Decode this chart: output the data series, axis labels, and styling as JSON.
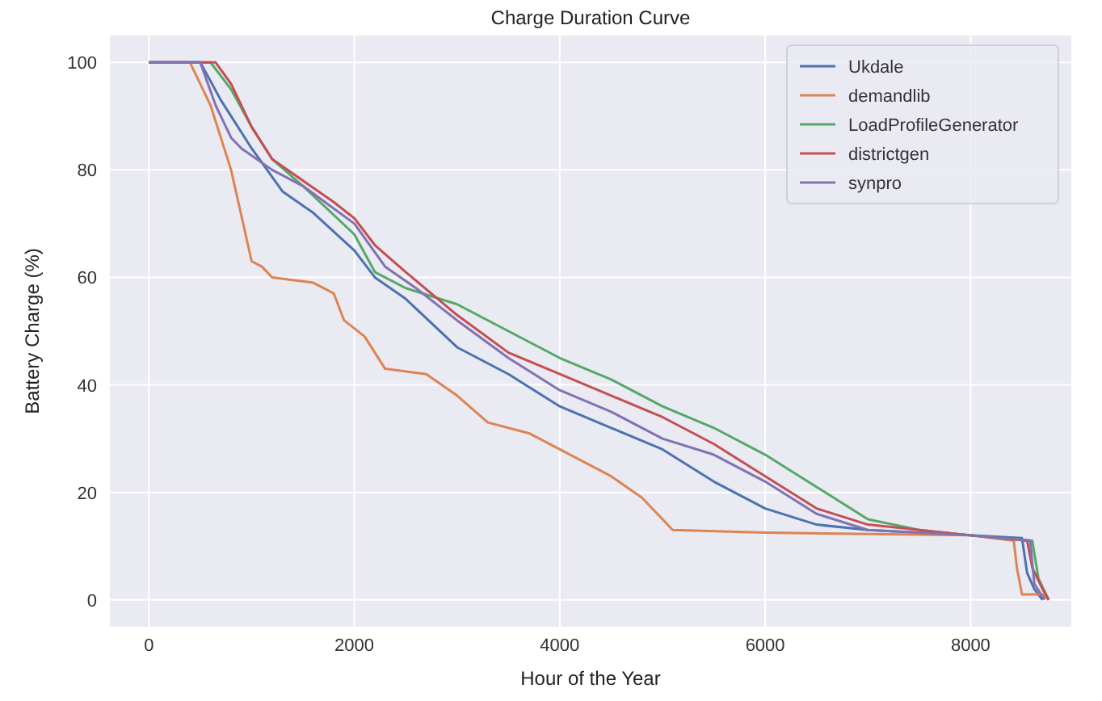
{
  "chart_data": {
    "type": "line",
    "title": "Charge Duration Curve",
    "xlabel": "Hour of the Year",
    "ylabel": "Battery Charge (%)",
    "xlim": [
      -380,
      8980
    ],
    "ylim": [
      -5,
      105
    ],
    "xticks": [
      0,
      2000,
      4000,
      6000,
      8000
    ],
    "yticks": [
      0,
      20,
      40,
      60,
      80,
      100
    ],
    "grid": true,
    "legend": "top right",
    "line_style": "solid",
    "marker": "none",
    "series": [
      {
        "name": "Ukdale",
        "color": "#4c72b0",
        "x": [
          0,
          500,
          700,
          1000,
          1300,
          1600,
          2000,
          2200,
          2500,
          3000,
          3500,
          4000,
          4500,
          5000,
          5500,
          6000,
          6500,
          7000,
          8000,
          8500,
          8550,
          8620,
          8700
        ],
        "values": [
          100,
          100,
          93,
          84,
          76,
          72,
          65,
          60,
          56,
          47,
          42,
          36,
          32,
          28,
          22,
          17,
          14,
          13,
          12,
          11.5,
          5,
          2,
          0
        ]
      },
      {
        "name": "demandlib",
        "color": "#dd8452",
        "x": [
          0,
          400,
          600,
          800,
          1000,
          1100,
          1200,
          1600,
          1800,
          1900,
          2100,
          2300,
          2700,
          3000,
          3300,
          3700,
          4000,
          4500,
          4800,
          5100,
          6000,
          8000,
          8420,
          8450,
          8500,
          8700,
          8760
        ],
        "values": [
          100,
          100,
          92,
          80,
          63,
          62,
          60,
          59,
          57,
          52,
          49,
          43,
          42,
          38,
          33,
          31,
          28,
          23,
          19,
          13,
          12.5,
          12,
          11,
          6,
          1,
          1,
          0
        ]
      },
      {
        "name": "LoadProfileGenerator",
        "color": "#55a868",
        "x": [
          0,
          600,
          800,
          1000,
          1200,
          1500,
          2000,
          2200,
          2500,
          3000,
          3500,
          4000,
          4500,
          5000,
          5500,
          6000,
          6500,
          7000,
          7500,
          8000,
          8600,
          8660,
          8760
        ],
        "values": [
          100,
          100,
          95,
          88,
          82,
          77,
          68,
          61,
          58,
          55,
          50,
          45,
          41,
          36,
          32,
          27,
          21,
          15,
          13,
          12,
          11,
          4,
          0
        ]
      },
      {
        "name": "districtgen",
        "color": "#c44e52",
        "x": [
          0,
          650,
          800,
          1000,
          1200,
          1500,
          1800,
          2000,
          2200,
          2500,
          3000,
          3500,
          4000,
          4500,
          5000,
          5500,
          6000,
          6500,
          7000,
          8000,
          8550,
          8600,
          8700,
          8760
        ],
        "values": [
          100,
          100,
          96,
          88,
          82,
          78,
          74,
          71,
          66,
          61,
          53,
          46,
          42,
          38,
          34,
          29,
          23,
          17,
          14,
          12,
          11,
          6,
          2,
          0
        ]
      },
      {
        "name": "synpro",
        "color": "#8172b3",
        "x": [
          0,
          500,
          650,
          800,
          900,
          1200,
          1500,
          2000,
          2300,
          2600,
          3000,
          3500,
          4000,
          4500,
          5000,
          5500,
          6000,
          6500,
          7000,
          8000,
          8580,
          8620,
          8720
        ],
        "values": [
          100,
          100,
          92,
          86,
          84,
          80,
          77,
          70,
          62,
          58,
          52,
          45,
          39,
          35,
          30,
          27,
          22,
          16,
          13,
          12,
          11,
          3,
          0
        ]
      }
    ]
  }
}
